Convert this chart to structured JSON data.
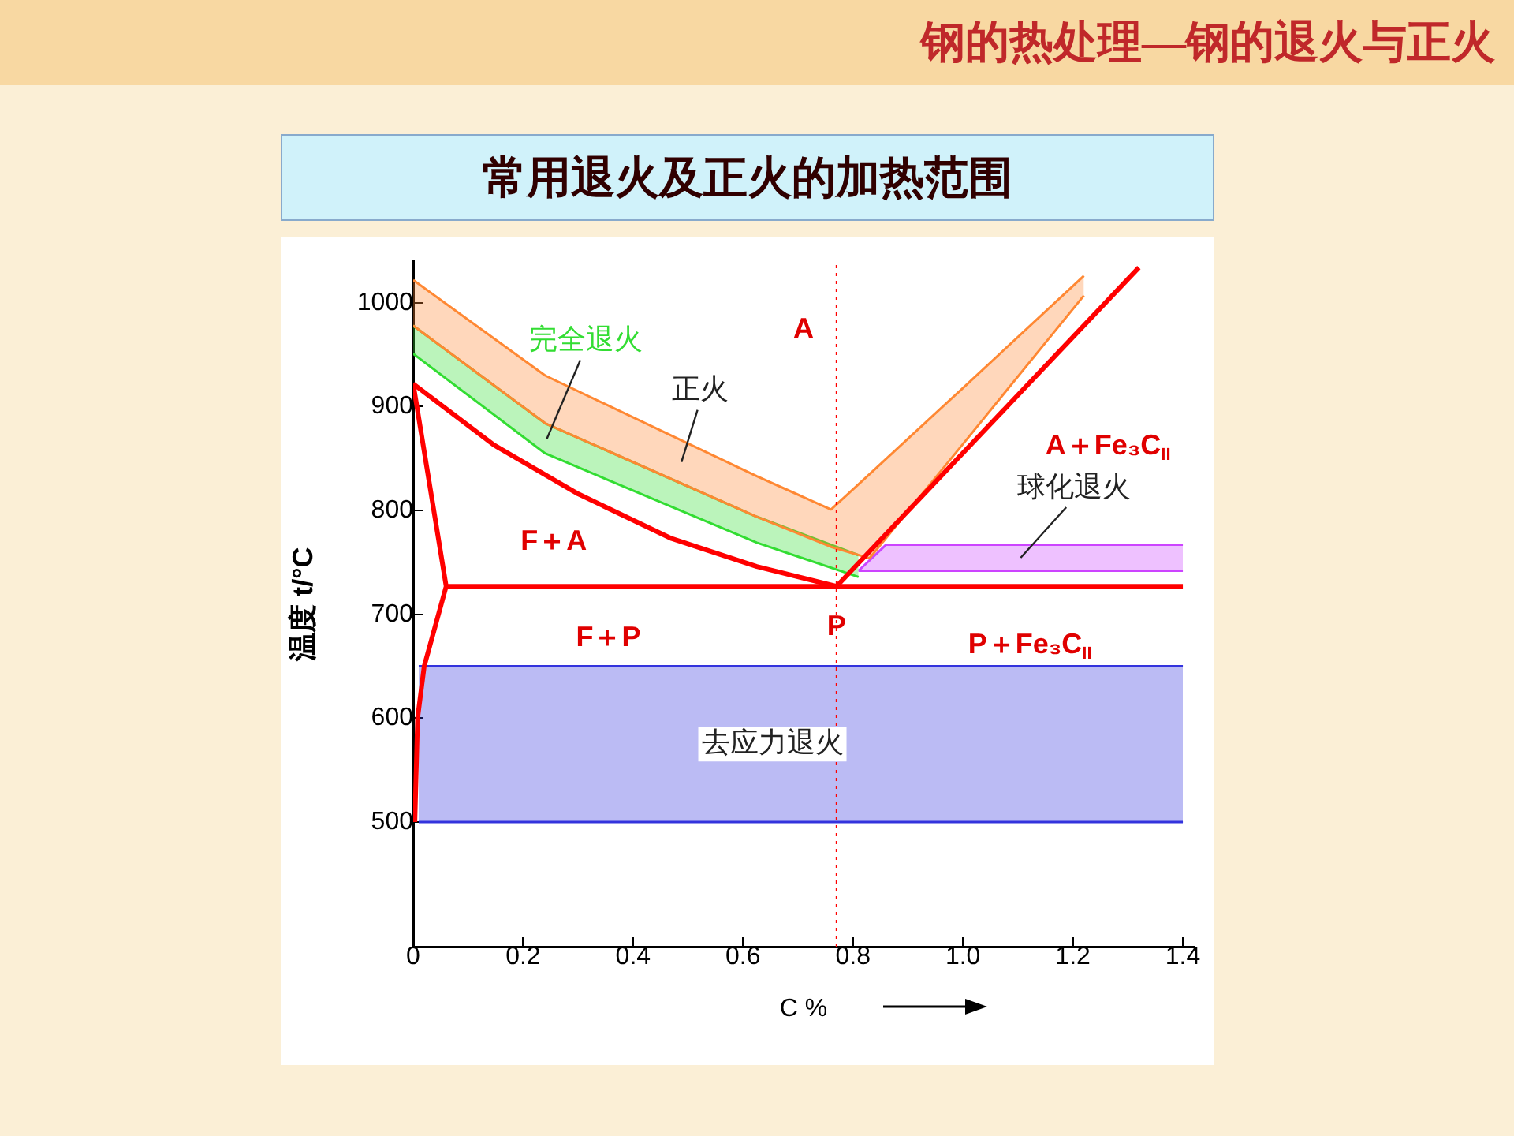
{
  "chart_data": {
    "type": "line",
    "title": "常用退火及正火的加热范围",
    "subtitle": "钢的热处理—钢的退火与正火",
    "xlabel": "C %",
    "ylabel": "温度 t/°C",
    "xlim": [
      0,
      1.42
    ],
    "ylim": [
      380,
      1040
    ],
    "xticks": [
      0,
      0.2,
      0.4,
      0.6,
      {
        "value": 0.8,
        "label": "0.8"
      },
      {
        "value": 1,
        "label": "1.0"
      },
      1.2,
      1.4
    ],
    "yticks": [
      500,
      600,
      700,
      800,
      900,
      1000
    ],
    "grid": false,
    "legend": false,
    "marker": "none",
    "series": [
      {
        "type": "line",
        "color": "#ff0000",
        "x": [
          0,
          0.147,
          0.3,
          0.47,
          0.625,
          0.77
        ],
        "values": [
          922,
          863,
          816,
          773,
          746,
          727
        ]
      },
      {
        "type": "line",
        "color": "#ff0000",
        "x": [
          0,
          0.06,
          0.02,
          0.008,
          0.003
        ],
        "values": [
          922,
          727,
          650,
          600,
          500
        ]
      },
      {
        "type": "line",
        "color": "#ff0000",
        "x": [
          0.06,
          1.4
        ],
        "values": [
          727,
          727
        ]
      },
      {
        "type": "line",
        "color": "#ff0000",
        "x": [
          0.77,
          1.32
        ],
        "values": [
          727,
          1034
        ]
      },
      {
        "type": "area",
        "name": "正火",
        "color": "#ff8833",
        "x": [
          0,
          0.24,
          0.625,
          0.76,
          0.83,
          1.0,
          1.22
        ],
        "values": [
          1022,
          930,
          833,
          801,
          835,
          918,
          1026
        ]
      },
      {
        "type": "line",
        "color": "#ff8833",
        "x": [
          0,
          0.24,
          0.625,
          0.76,
          0.83,
          1.0,
          1.22
        ],
        "values": [
          978,
          884,
          794,
          765,
          754,
          864,
          1007
        ]
      },
      {
        "type": "area",
        "name": "完全退火",
        "color": "#33dd33",
        "x": [
          0,
          0.24,
          0.625,
          0.81
        ],
        "values": [
          978,
          884,
          794,
          757
        ]
      },
      {
        "type": "line",
        "color": "#33dd33",
        "x": [
          0,
          0.24,
          0.625,
          0.81
        ],
        "values": [
          951,
          855,
          769,
          736
        ]
      },
      {
        "type": "area",
        "name": "球化退火",
        "color": "#cc44ff",
        "x": [
          0.81,
          0.86,
          1.4
        ],
        "values": [
          742,
          767,
          767
        ]
      },
      {
        "type": "line",
        "color": "#cc44ff",
        "x": [
          0.81,
          1.4
        ],
        "values": [
          742,
          742
        ]
      },
      {
        "type": "area",
        "name": "去应力退火",
        "color": "#3333dd",
        "x": [
          0.01,
          1.4
        ],
        "values": [
          650,
          650
        ]
      },
      {
        "type": "line",
        "color": "#3333dd",
        "x": [
          0.01,
          1.4
        ],
        "values": [
          500,
          500
        ]
      }
    ],
    "ref_lines": [
      {
        "axis": "x",
        "value": 0.77,
        "color": "#ff0000",
        "line_style": "dotted"
      }
    ],
    "annotations": [
      "A",
      "F＋A",
      "F＋P",
      {
        "text": "P",
        "x": 0.77,
        "y": 727
      },
      "P＋Fe₃C$_{II}$",
      "A＋Fe₃C$_{II}$"
    ]
  }
}
